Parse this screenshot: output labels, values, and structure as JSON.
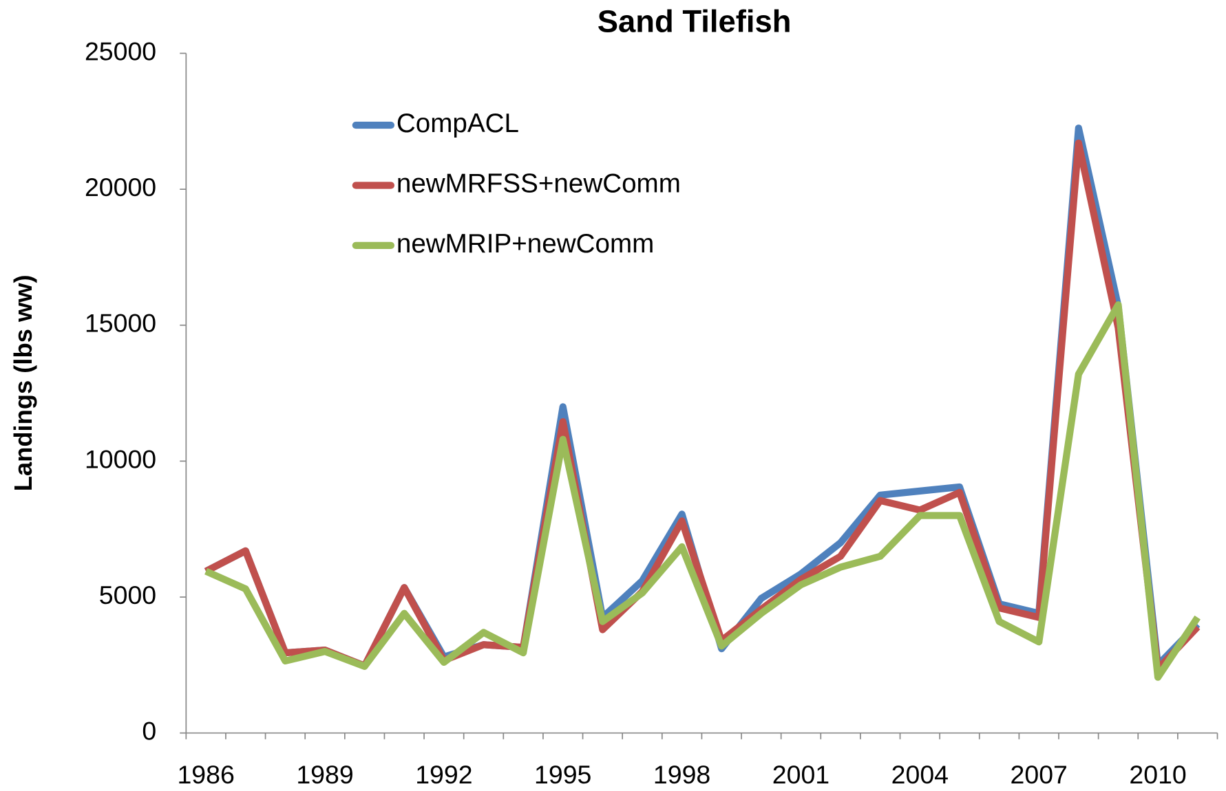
{
  "chart_data": {
    "type": "line",
    "title": "Sand Tilefish",
    "y_label": "Landings (lbs ww)",
    "categories": [
      "1986",
      null,
      null,
      "1989",
      null,
      null,
      "1992",
      null,
      null,
      "1995",
      null,
      null,
      "1998",
      null,
      null,
      "2001",
      null,
      null,
      "2004",
      null,
      null,
      "2007",
      null,
      null,
      "2010",
      null
    ],
    "series": [
      {
        "name": "CompACL",
        "color": "#4f81bd",
        "values": [
          5950,
          6700,
          2950,
          3050,
          2470,
          5350,
          2800,
          3250,
          3150,
          12000,
          4250,
          5600,
          8050,
          3100,
          4950,
          5850,
          7000,
          8750,
          8900,
          9050,
          4750,
          4400,
          22250,
          15700,
          2500,
          4000
        ]
      },
      {
        "name": "newMRFSS+newComm",
        "color": "#c0504d",
        "values": [
          5950,
          6700,
          2950,
          3050,
          2470,
          5350,
          2670,
          3250,
          3150,
          11450,
          3800,
          5200,
          7800,
          3400,
          4550,
          5650,
          6500,
          8550,
          8200,
          8850,
          4600,
          4250,
          21700,
          14900,
          2350,
          3900
        ]
      },
      {
        "name": "newMRIP+newComm",
        "color": "#9bbb59",
        "values": [
          5950,
          5300,
          2650,
          3000,
          2450,
          4400,
          2600,
          3700,
          2950,
          10800,
          4100,
          5150,
          6850,
          3200,
          4400,
          5450,
          6100,
          6500,
          8000,
          8000,
          4100,
          3350,
          13200,
          15750,
          2050,
          4250
        ]
      }
    ],
    "ylim": [
      0,
      25000
    ],
    "yticks": [
      0,
      5000,
      10000,
      15000,
      20000,
      25000
    ],
    "grid": false
  }
}
